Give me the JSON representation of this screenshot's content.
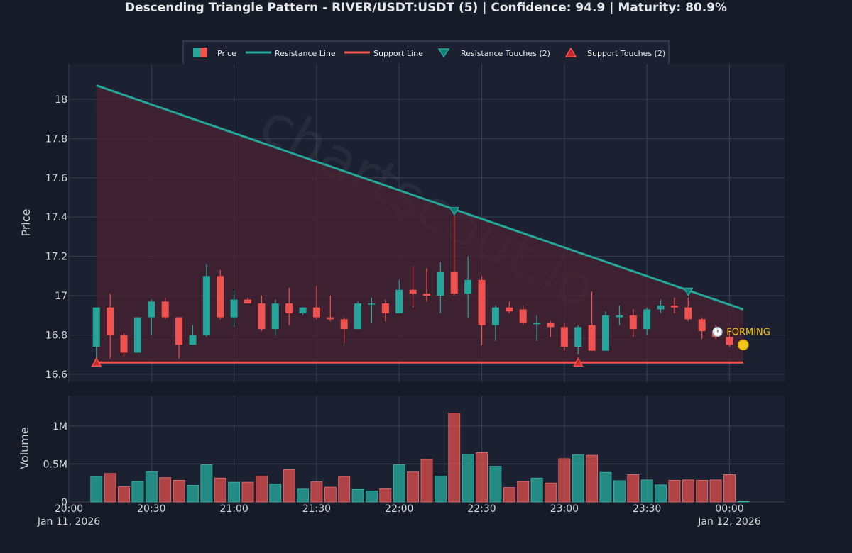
{
  "colors": {
    "background": "#161b27",
    "plot_bg": "#1b2130",
    "up": "#26a69a",
    "down": "#ef5350",
    "resistance": "#26a69a",
    "support": "#ef5350",
    "triangle_fill": "#4a2230",
    "forming": "#f5c518"
  },
  "watermark": "chartscout.io",
  "forming_label": "🕐 FORMING",
  "chart_data": {
    "type": "candlestick",
    "title": "Descending Triangle Pattern - RIVER/USDT:USDT (5) | Confidence: 94.9 | Maturity: 80.9%",
    "x_axis": {
      "tick_labels": [
        "20:00\nJan 11, 2026",
        "20:30",
        "21:00",
        "21:30",
        "22:00",
        "22:30",
        "23:00",
        "23:30",
        "00:00\nJan 12, 2026"
      ],
      "range": [
        "2026-01-11 20:00",
        "2026-01-12 00:20"
      ]
    },
    "price_axis": {
      "label": "Price",
      "range": [
        16.56,
        18.18
      ],
      "ticks": [
        16.6,
        16.8,
        17,
        17.2,
        17.4,
        17.6,
        17.8,
        18
      ],
      "tick_labels": [
        "16.6",
        "16.8",
        "17",
        "17.2",
        "17.4",
        "17.6",
        "17.8",
        "18"
      ]
    },
    "volume_axis": {
      "label": "Volume",
      "range": [
        0,
        1400000
      ],
      "ticks": [
        0,
        500000,
        1000000
      ],
      "tick_labels": [
        "0",
        "0.5M",
        "1M"
      ]
    },
    "legend": [
      {
        "name": "Price",
        "symbol": "candle"
      },
      {
        "name": "Resistance Line",
        "symbol": "line-teal"
      },
      {
        "name": "Support Line",
        "symbol": "line-red"
      },
      {
        "name": "Resistance Touches (2)",
        "symbol": "triangle-down"
      },
      {
        "name": "Support Touches (2)",
        "symbol": "triangle-up"
      }
    ],
    "legend_position": "top-center",
    "grid": true,
    "candles": [
      {
        "t": "20:10",
        "o": 16.74,
        "h": 16.94,
        "l": 16.66,
        "c": 16.94,
        "v": 330000
      },
      {
        "t": "20:15",
        "o": 16.94,
        "h": 17.01,
        "l": 16.68,
        "c": 16.8,
        "v": 375000
      },
      {
        "t": "20:20",
        "o": 16.8,
        "h": 16.81,
        "l": 16.69,
        "c": 16.71,
        "v": 200000
      },
      {
        "t": "20:25",
        "o": 16.71,
        "h": 16.89,
        "l": 16.71,
        "c": 16.89,
        "v": 270000
      },
      {
        "t": "20:30",
        "o": 16.89,
        "h": 16.98,
        "l": 16.8,
        "c": 16.97,
        "v": 400000
      },
      {
        "t": "20:35",
        "o": 16.97,
        "h": 16.99,
        "l": 16.88,
        "c": 16.89,
        "v": 320000
      },
      {
        "t": "20:40",
        "o": 16.89,
        "h": 16.89,
        "l": 16.68,
        "c": 16.75,
        "v": 285000
      },
      {
        "t": "20:45",
        "o": 16.75,
        "h": 16.85,
        "l": 16.75,
        "c": 16.8,
        "v": 220000
      },
      {
        "t": "20:50",
        "o": 16.8,
        "h": 17.16,
        "l": 16.79,
        "c": 17.1,
        "v": 490000
      },
      {
        "t": "20:55",
        "o": 17.1,
        "h": 17.13,
        "l": 16.88,
        "c": 16.89,
        "v": 315000
      },
      {
        "t": "21:00",
        "o": 16.89,
        "h": 17.03,
        "l": 16.84,
        "c": 16.98,
        "v": 260000
      },
      {
        "t": "21:05",
        "o": 16.98,
        "h": 16.99,
        "l": 16.96,
        "c": 16.96,
        "v": 260000
      },
      {
        "t": "21:10",
        "o": 16.96,
        "h": 17.0,
        "l": 16.82,
        "c": 16.83,
        "v": 340000
      },
      {
        "t": "21:15",
        "o": 16.83,
        "h": 16.98,
        "l": 16.8,
        "c": 16.96,
        "v": 235000
      },
      {
        "t": "21:20",
        "o": 16.96,
        "h": 17.04,
        "l": 16.85,
        "c": 16.91,
        "v": 425000
      },
      {
        "t": "21:25",
        "o": 16.91,
        "h": 16.94,
        "l": 16.9,
        "c": 16.94,
        "v": 170000
      },
      {
        "t": "21:30",
        "o": 16.94,
        "h": 17.05,
        "l": 16.88,
        "c": 16.89,
        "v": 265000
      },
      {
        "t": "21:35",
        "o": 16.89,
        "h": 17.0,
        "l": 16.87,
        "c": 16.88,
        "v": 195000
      },
      {
        "t": "21:40",
        "o": 16.88,
        "h": 16.89,
        "l": 16.76,
        "c": 16.83,
        "v": 330000
      },
      {
        "t": "21:45",
        "o": 16.83,
        "h": 16.97,
        "l": 16.83,
        "c": 16.96,
        "v": 165000
      },
      {
        "t": "21:50",
        "o": 16.96,
        "h": 16.99,
        "l": 16.86,
        "c": 16.96,
        "v": 145000
      },
      {
        "t": "21:55",
        "o": 16.96,
        "h": 16.98,
        "l": 16.87,
        "c": 16.91,
        "v": 175000
      },
      {
        "t": "22:00",
        "o": 16.91,
        "h": 17.08,
        "l": 16.91,
        "c": 17.03,
        "v": 490000
      },
      {
        "t": "22:05",
        "o": 17.03,
        "h": 17.15,
        "l": 16.94,
        "c": 17.01,
        "v": 395000
      },
      {
        "t": "22:10",
        "o": 17.01,
        "h": 17.14,
        "l": 16.97,
        "c": 17.0,
        "v": 560000
      },
      {
        "t": "22:15",
        "o": 17.0,
        "h": 17.17,
        "l": 16.91,
        "c": 17.12,
        "v": 340000
      },
      {
        "t": "22:20",
        "o": 17.12,
        "h": 17.43,
        "l": 17.0,
        "c": 17.01,
        "v": 1170000
      },
      {
        "t": "22:25",
        "o": 17.01,
        "h": 17.2,
        "l": 16.89,
        "c": 17.08,
        "v": 630000
      },
      {
        "t": "22:30",
        "o": 17.08,
        "h": 17.1,
        "l": 16.75,
        "c": 16.85,
        "v": 650000
      },
      {
        "t": "22:35",
        "o": 16.85,
        "h": 16.95,
        "l": 16.77,
        "c": 16.94,
        "v": 470000
      },
      {
        "t": "22:40",
        "o": 16.94,
        "h": 16.97,
        "l": 16.91,
        "c": 16.92,
        "v": 190000
      },
      {
        "t": "22:45",
        "o": 16.93,
        "h": 16.95,
        "l": 16.85,
        "c": 16.86,
        "v": 270000
      },
      {
        "t": "22:50",
        "o": 16.86,
        "h": 16.9,
        "l": 16.77,
        "c": 16.86,
        "v": 315000
      },
      {
        "t": "22:55",
        "o": 16.86,
        "h": 16.87,
        "l": 16.79,
        "c": 16.84,
        "v": 250000
      },
      {
        "t": "23:00",
        "o": 16.84,
        "h": 16.86,
        "l": 16.72,
        "c": 16.74,
        "v": 570000
      },
      {
        "t": "23:05",
        "o": 16.74,
        "h": 16.85,
        "l": 16.7,
        "c": 16.84,
        "v": 620000
      },
      {
        "t": "23:10",
        "o": 16.85,
        "h": 17.02,
        "l": 16.72,
        "c": 16.72,
        "v": 615000
      },
      {
        "t": "23:15",
        "o": 16.72,
        "h": 16.92,
        "l": 16.72,
        "c": 16.9,
        "v": 390000
      },
      {
        "t": "23:20",
        "o": 16.89,
        "h": 16.95,
        "l": 16.85,
        "c": 16.9,
        "v": 280000
      },
      {
        "t": "23:25",
        "o": 16.9,
        "h": 16.93,
        "l": 16.79,
        "c": 16.83,
        "v": 360000
      },
      {
        "t": "23:30",
        "o": 16.83,
        "h": 16.94,
        "l": 16.8,
        "c": 16.93,
        "v": 290000
      },
      {
        "t": "23:35",
        "o": 16.93,
        "h": 16.98,
        "l": 16.91,
        "c": 16.95,
        "v": 225000
      },
      {
        "t": "23:40",
        "o": 16.95,
        "h": 16.99,
        "l": 16.91,
        "c": 16.94,
        "v": 285000
      },
      {
        "t": "23:45",
        "o": 16.94,
        "h": 16.99,
        "l": 16.87,
        "c": 16.88,
        "v": 290000
      },
      {
        "t": "23:50",
        "o": 16.88,
        "h": 16.89,
        "l": 16.78,
        "c": 16.82,
        "v": 285000
      },
      {
        "t": "23:55",
        "o": 16.82,
        "h": 16.85,
        "l": 16.78,
        "c": 16.79,
        "v": 290000
      },
      {
        "t": "00:00",
        "o": 16.79,
        "h": 16.82,
        "l": 16.74,
        "c": 16.75,
        "v": 360000
      },
      {
        "t": "00:05",
        "o": 16.75,
        "h": 16.76,
        "l": 16.75,
        "c": 16.75,
        "v": 8000
      }
    ],
    "resistance_line": {
      "start": {
        "t": "20:10",
        "price": 18.07
      },
      "end": {
        "t": "00:05",
        "price": 16.93
      }
    },
    "support_line": {
      "start": {
        "t": "20:10",
        "price": 16.66
      },
      "end": {
        "t": "00:05",
        "price": 16.66
      }
    },
    "resistance_touches": [
      {
        "t": "22:20",
        "price": 17.43
      },
      {
        "t": "23:45",
        "price": 17.02
      }
    ],
    "support_touches": [
      {
        "t": "20:10",
        "price": 16.66
      },
      {
        "t": "23:05",
        "price": 16.66
      }
    ],
    "forming_marker": {
      "t": "00:05",
      "price": 16.75
    }
  }
}
